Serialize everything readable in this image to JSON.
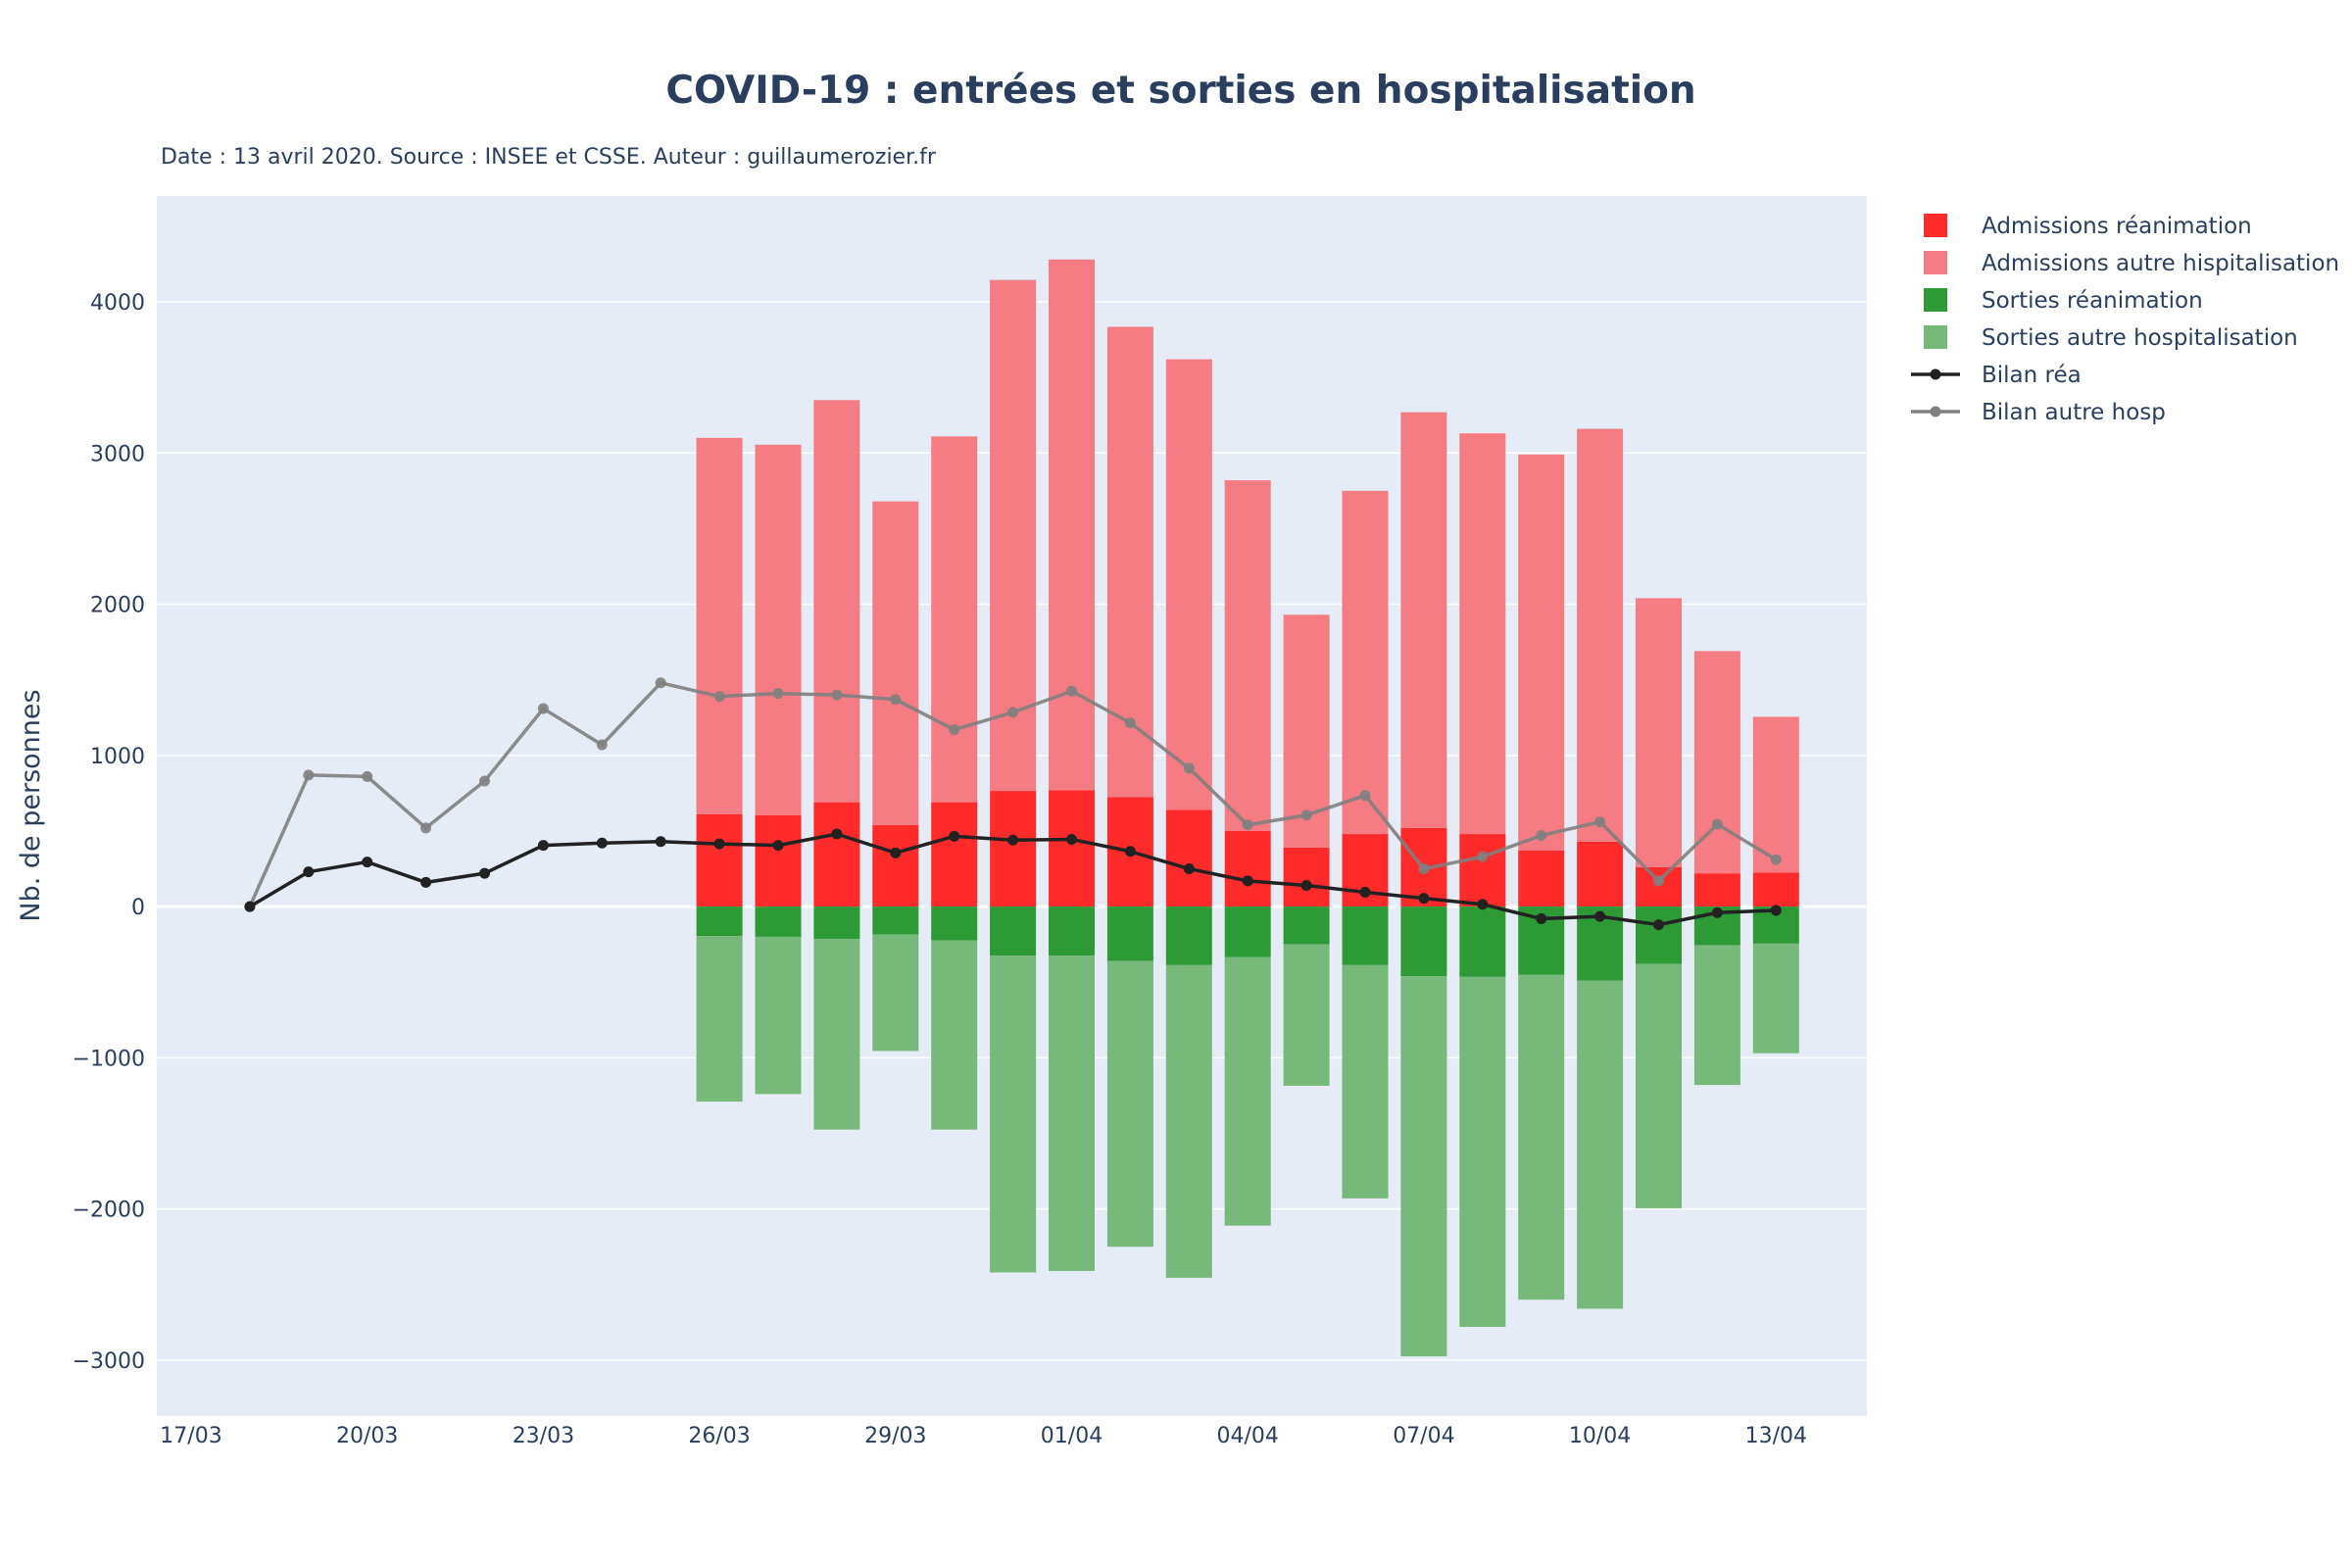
{
  "chart_data": {
    "type": "bar",
    "title": "COVID-19 : entrées et sorties en hospitalisation",
    "subtitle": "Date : 13 avril 2020. Source : INSEE et CSSE. Auteur : guillaumerozier.fr",
    "ylabel": "Nb. de personnes",
    "xlabel": "",
    "ylim": [
      -3370,
      4700
    ],
    "yticks": [
      4000,
      3000,
      2000,
      1000,
      0,
      -1000,
      -2000,
      -3000
    ],
    "ytick_labels": [
      "4000",
      "3000",
      "2000",
      "1000",
      "0",
      "−1000",
      "−2000",
      "−3000"
    ],
    "xtick_labels": [
      "17/03",
      "20/03",
      "23/03",
      "26/03",
      "29/03",
      "01/04",
      "04/04",
      "07/04",
      "10/04",
      "13/04"
    ],
    "xtick_indices": [
      0,
      3,
      6,
      9,
      12,
      15,
      18,
      21,
      24,
      27
    ],
    "categories": [
      "17/03",
      "18/03",
      "19/03",
      "20/03",
      "21/03",
      "22/03",
      "23/03",
      "24/03",
      "25/03",
      "26/03",
      "27/03",
      "28/03",
      "29/03",
      "30/03",
      "31/03",
      "01/04",
      "02/04",
      "03/04",
      "04/04",
      "05/04",
      "06/04",
      "07/04",
      "08/04",
      "09/04",
      "10/04",
      "11/04",
      "12/04",
      "13/04"
    ],
    "grid": true,
    "legend_position": "right",
    "colors": {
      "plot_bg": "#e5ecf6",
      "grid": "#ffffff",
      "adm_rea": "#ff2a2a",
      "adm_hosp": "#f47c82",
      "sort_rea": "#2e9a35",
      "sort_hosp": "#76b97a",
      "bilan_rea": "#222222",
      "bilan_hosp": "#808080"
    },
    "series": [
      {
        "name": "Admissions réanimation",
        "kind": "bar",
        "values": [
          null,
          null,
          null,
          null,
          null,
          null,
          null,
          null,
          null,
          610,
          605,
          690,
          540,
          690,
          765,
          770,
          725,
          640,
          500,
          390,
          480,
          520,
          480,
          370,
          430,
          260,
          220,
          225
        ]
      },
      {
        "name": "Admissions autre hispitalisation",
        "kind": "bar",
        "values": [
          null,
          null,
          null,
          null,
          null,
          null,
          null,
          null,
          null,
          2490,
          2450,
          2660,
          2140,
          2420,
          3380,
          3510,
          3110,
          2980,
          2320,
          1540,
          2270,
          2750,
          2650,
          2620,
          2730,
          1780,
          1470,
          1030
        ]
      },
      {
        "name": "Sorties réanimation",
        "kind": "bar",
        "values": [
          null,
          null,
          null,
          null,
          null,
          null,
          null,
          null,
          null,
          -195,
          -200,
          -215,
          -185,
          -225,
          -325,
          -325,
          -360,
          -385,
          -335,
          -250,
          -385,
          -460,
          -465,
          -450,
          -490,
          -380,
          -255,
          -245
        ]
      },
      {
        "name": "Sorties autre hospitalisation",
        "kind": "bar",
        "values": [
          null,
          null,
          null,
          null,
          null,
          null,
          null,
          null,
          null,
          -1095,
          -1040,
          -1260,
          -770,
          -1250,
          -2095,
          -2085,
          -1890,
          -2070,
          -1775,
          -935,
          -1545,
          -2515,
          -2315,
          -2150,
          -2170,
          -1615,
          -925,
          -725
        ]
      },
      {
        "name": "Bilan réa",
        "kind": "line",
        "values": [
          null,
          0,
          230,
          295,
          160,
          220,
          405,
          420,
          430,
          415,
          405,
          480,
          355,
          465,
          440,
          445,
          365,
          250,
          170,
          140,
          95,
          55,
          15,
          -80,
          -65,
          -120,
          -40,
          -25
        ]
      },
      {
        "name": "Bilan autre hosp",
        "kind": "line",
        "values": [
          null,
          0,
          870,
          860,
          520,
          830,
          1310,
          1070,
          1480,
          1390,
          1410,
          1400,
          1370,
          1170,
          1285,
          1425,
          1215,
          915,
          540,
          605,
          735,
          250,
          330,
          470,
          560,
          170,
          545,
          310
        ]
      }
    ]
  }
}
